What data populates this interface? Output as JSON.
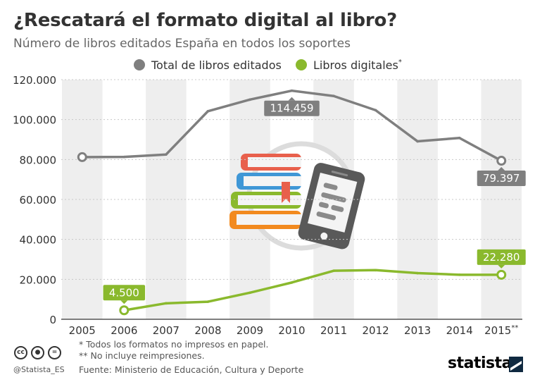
{
  "header": {
    "title": "¿Rescatará el formato digital al libro?",
    "subtitle": "Número de libros editados España en todos los soportes"
  },
  "colors": {
    "total": "#7f7f7f",
    "digital": "#8ab92d",
    "band": "#eeeeee"
  },
  "chart_data": {
    "type": "line",
    "categories": [
      "2005",
      "2006",
      "2007",
      "2008",
      "2009",
      "2010",
      "2011",
      "2012",
      "2013",
      "2014",
      "2015"
    ],
    "category_marks": [
      "",
      "",
      "",
      "",
      "",
      "",
      "",
      "",
      "",
      "",
      "**"
    ],
    "ylim": [
      0,
      120000
    ],
    "yticks": [
      "0",
      "20.000",
      "40.000",
      "60.000",
      "80.000",
      "100.000",
      "120.000"
    ],
    "ytick_values": [
      0,
      20000,
      40000,
      60000,
      80000,
      100000,
      120000
    ],
    "grid": true,
    "legend_position": "top",
    "series": [
      {
        "name": "Total de libros editados",
        "name_mark": "",
        "color": "#7f7f7f",
        "values": [
          81200,
          81300,
          82500,
          104200,
          110000,
          114459,
          111800,
          104700,
          89100,
          90800,
          79397
        ]
      },
      {
        "name": "Libros digitales",
        "name_mark": "*",
        "color": "#8ab92d",
        "values": [
          null,
          4500,
          8000,
          8800,
          13300,
          18400,
          24300,
          24600,
          23100,
          22300,
          22280
        ]
      }
    ],
    "annotations": [
      {
        "series": 0,
        "index": 5,
        "text": "114.459",
        "placement": "below"
      },
      {
        "series": 0,
        "index": 10,
        "text": "79.397",
        "placement": "below"
      },
      {
        "series": 1,
        "index": 1,
        "text": "4.500",
        "placement": "above"
      },
      {
        "series": 1,
        "index": 10,
        "text": "22.280",
        "placement": "above"
      }
    ]
  },
  "footer": {
    "note1": "*   Todos los formatos no impresos en papel.",
    "note2": "** No incluye reimpresiones.",
    "source": "Fuente: Ministerio de Educación, Cultura y Deporte",
    "handle": "@Statista_ES",
    "brand": "statista"
  },
  "icons": [
    "cc-icon",
    "by-icon",
    "nd-icon",
    "books-icon",
    "tablet-icon",
    "statista-logo-icon"
  ]
}
